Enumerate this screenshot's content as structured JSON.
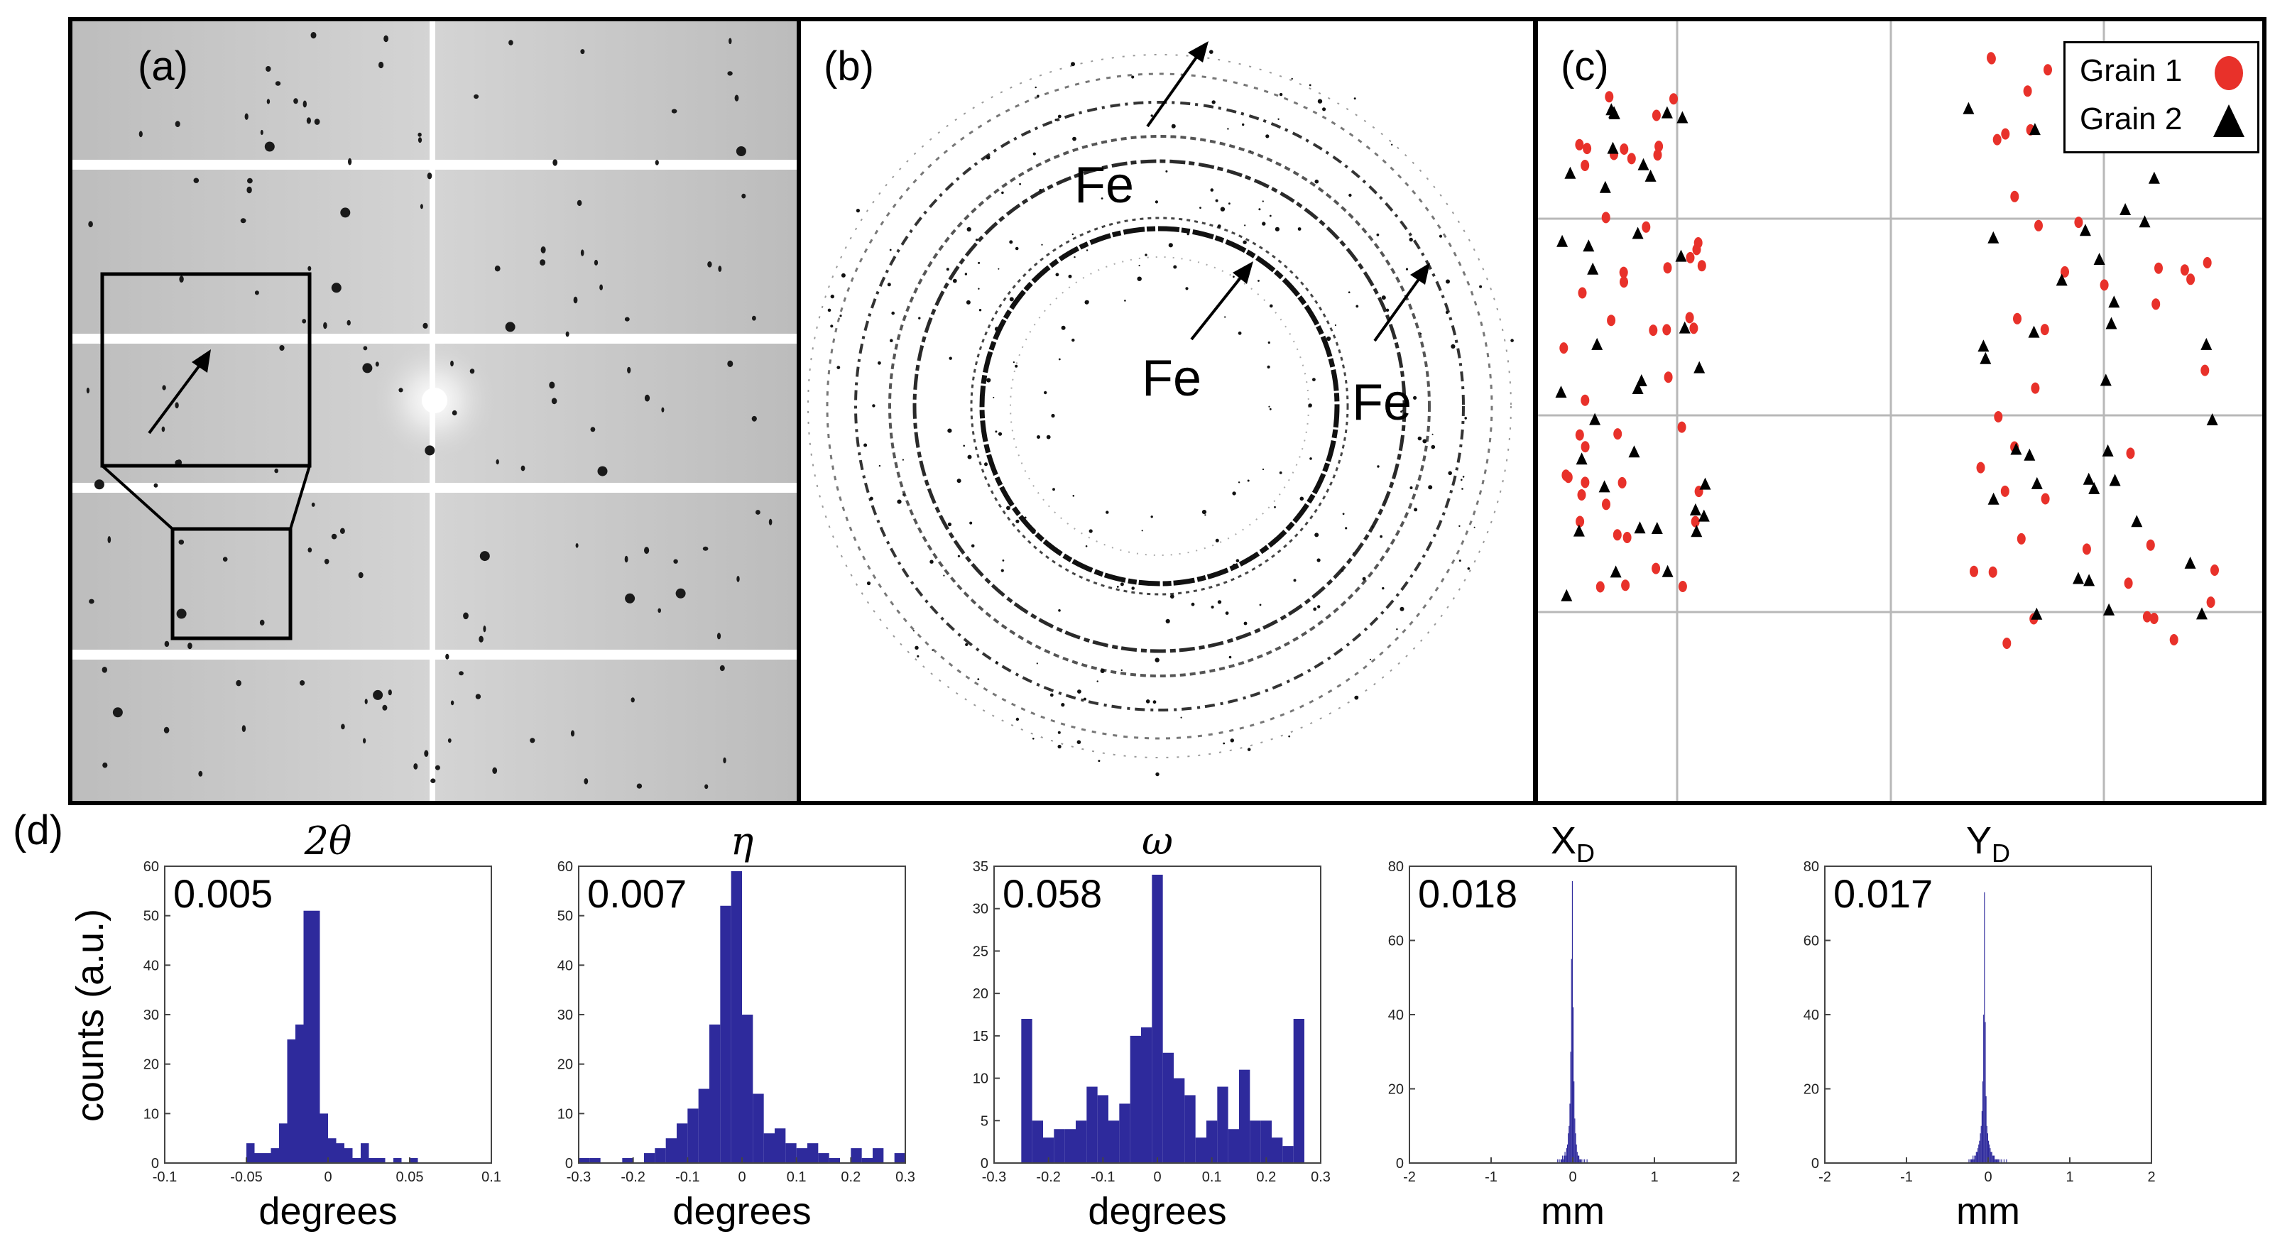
{
  "panels": {
    "a": {
      "label": "(a)"
    },
    "b": {
      "label": "(b)",
      "annotations": [
        "Fe",
        "Fe",
        "Fe"
      ]
    },
    "c": {
      "label": "(c)",
      "legend": [
        {
          "name": "Grain 1",
          "marker": "circle",
          "color": "#e8312a"
        },
        {
          "name": "Grain 2",
          "marker": "triangle",
          "color": "#000000"
        }
      ]
    },
    "d": {
      "label": "(d)",
      "ylabel": "counts (a.u.)"
    }
  },
  "colors": {
    "bar": "#2e2a9c",
    "grain1": "#e8312a",
    "grain2": "#000000"
  },
  "chart_data": [
    {
      "type": "bar",
      "title": "2θ",
      "stat": "0.005",
      "xlabel": "degrees",
      "ylabel": "counts (a.u.)",
      "xlim": [
        -0.1,
        0.1
      ],
      "ylim": [
        0,
        60
      ],
      "xticks": [
        -0.1,
        -0.05,
        0,
        0.05,
        0.1
      ],
      "xtick_labels": [
        "-0.1",
        "-0.05",
        "0",
        "0.05",
        "0.1"
      ],
      "yticks": [
        0,
        10,
        20,
        30,
        40,
        50,
        60
      ],
      "bin_start": -0.05,
      "bin_width": 0.005,
      "values": [
        4,
        2,
        2,
        3,
        8,
        25,
        28,
        51,
        51,
        10,
        5,
        4,
        3,
        1,
        4,
        1,
        1,
        0,
        1,
        0,
        1
      ]
    },
    {
      "type": "bar",
      "title": "η",
      "stat": "0.007",
      "xlabel": "degrees",
      "ylabel": "counts (a.u.)",
      "xlim": [
        -0.3,
        0.3
      ],
      "ylim": [
        0,
        60
      ],
      "xticks": [
        -0.3,
        -0.2,
        -0.1,
        0,
        0.1,
        0.2,
        0.3
      ],
      "xtick_labels": [
        "-0.3",
        "-0.2",
        "-0.1",
        "0",
        "0.1",
        "0.2",
        "0.3"
      ],
      "yticks": [
        0,
        10,
        20,
        30,
        40,
        50,
        60
      ],
      "bin_start": -0.3,
      "bin_width": 0.02,
      "values": [
        1,
        1,
        0,
        0,
        1,
        0,
        2,
        3,
        5,
        8,
        11,
        15,
        28,
        52,
        59,
        30,
        14,
        6,
        7,
        4,
        3,
        4,
        2,
        1,
        0,
        3,
        1,
        3,
        0,
        2
      ]
    },
    {
      "type": "bar",
      "title": "ω",
      "stat": "0.058",
      "xlabel": "degrees",
      "ylabel": "counts (a.u.)",
      "xlim": [
        -0.3,
        0.3
      ],
      "ylim": [
        0,
        35
      ],
      "xticks": [
        -0.3,
        -0.2,
        -0.1,
        0,
        0.1,
        0.2,
        0.3
      ],
      "xtick_labels": [
        "-0.3",
        "-0.2",
        "-0.1",
        "0",
        "0.1",
        "0.2",
        "0.3"
      ],
      "yticks": [
        0,
        5,
        10,
        15,
        20,
        25,
        30,
        35
      ],
      "bin_start": -0.25,
      "bin_width": 0.02,
      "values": [
        17,
        5,
        3,
        4,
        4,
        5,
        9,
        8,
        5,
        7,
        15,
        16,
        34,
        13,
        10,
        8,
        3,
        5,
        9,
        4,
        11,
        5,
        5,
        3,
        2,
        17
      ]
    },
    {
      "type": "bar",
      "title": "X",
      "title_sub": "D",
      "stat": "0.018",
      "xlabel": "mm",
      "ylabel": "counts (a.u.)",
      "xlim": [
        -2,
        2
      ],
      "ylim": [
        0,
        80
      ],
      "xticks": [
        -2,
        -1,
        0,
        1,
        2
      ],
      "xtick_labels": [
        "-2",
        "-1",
        "0",
        "1",
        "2"
      ],
      "yticks": [
        0,
        20,
        40,
        60,
        80
      ],
      "bin_start": -0.2,
      "bin_width": 0.01,
      "values": [
        0,
        1,
        0,
        1,
        0,
        1,
        1,
        2,
        1,
        2,
        3,
        2,
        4,
        5,
        8,
        10,
        16,
        30,
        55,
        76,
        42,
        22,
        12,
        8,
        5,
        3,
        2,
        2,
        1,
        1,
        1,
        0,
        1,
        0,
        1,
        0,
        0,
        1,
        0,
        0
      ]
    },
    {
      "type": "bar",
      "title": "Y",
      "title_sub": "D",
      "stat": "0.017",
      "xlabel": "mm",
      "ylabel": "counts (a.u.)",
      "xlim": [
        -2,
        2
      ],
      "ylim": [
        0,
        80
      ],
      "xticks": [
        -2,
        -1,
        0,
        1,
        2
      ],
      "xtick_labels": [
        "-2",
        "-1",
        "0",
        "1",
        "2"
      ],
      "yticks": [
        0,
        20,
        40,
        60,
        80
      ],
      "bin_start": -0.25,
      "bin_width": 0.01,
      "values": [
        0,
        1,
        0,
        1,
        1,
        1,
        2,
        1,
        2,
        2,
        3,
        3,
        4,
        5,
        6,
        8,
        10,
        14,
        22,
        40,
        73,
        38,
        18,
        10,
        8,
        6,
        5,
        4,
        3,
        3,
        2,
        2,
        2,
        1,
        1,
        1,
        1,
        1,
        0,
        1,
        0,
        1,
        0,
        0,
        1,
        0,
        0,
        1,
        0,
        0
      ]
    }
  ]
}
